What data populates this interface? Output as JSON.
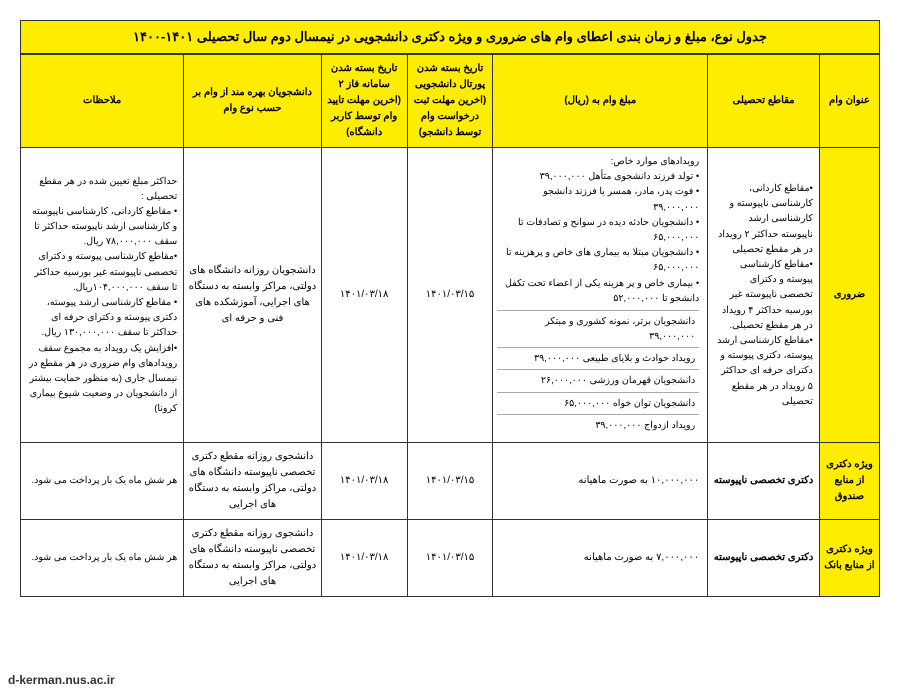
{
  "title": "جدول نوع، مبلغ و زمان بندی اعطای وام های ضروری و ویژه دکتری دانشجویی در نیمسال دوم سال تحصیلی ۱۴۰۱-۱۴۰۰",
  "headers": {
    "loan_title": "عنوان وام",
    "level": "مقاطع تحصیلی",
    "amount": "مبلغ وام به (ریال)",
    "date_portal": "تاریخ بسته شدن پورتال دانشجویی (اخرین مهلت ثبت درخواست وام توسط دانشجو)",
    "date_phase2": "تاریخ بسته شدن سامانه فاز ۲ (اخرین مهلت تایید وام توسط کاربر دانشگاه)",
    "beneficiaries": "دانشجویان بهره مند از وام بر حسب نوع وام",
    "notes": "ملاحظات"
  },
  "rows": {
    "essential": {
      "title": "ضروری",
      "level": "•مقاطع کاردانی، کارشناسی ناپیوسته و کارشناسی ارشد ناپیوسته حداکثر ۲ رویداد در هر مقطع تحصیلی\n•مقاطع کارشناسی پیوسته و دکترای تخصصی ناپیوسته غیر بورسیه حداکثر ۴ رویداد در هر مقطع تحصیلی.\n•مقاطع کارشناسی ارشد پیوسته، دکتری پیوسته و دکترای حرفه ای حداکثر ۵ رویداد در هر مقطع تحصیلی",
      "events_header": "رویدادهای موارد خاص:",
      "events": [
        "• تولد فرزند دانشجوی متأهل ۳۹,۰۰۰,۰۰۰",
        "• فوت پدر، مادر، همسر یا فرزند دانشجو ۳۹,۰۰۰,۰۰۰",
        "• دانشجویان حادثه دیده در سوانح و تصادفات تا ۶۵,۰۰۰,۰۰۰",
        "• دانشجویان مبتلا به بیماری های خاص و پرهزینه تا ۶۵,۰۰۰,۰۰۰",
        "• بیماری خاص و پر هزینه یکی از اعضاء تحت تکفل دانشجو تا ۵۲,۰۰۰,۰۰۰"
      ],
      "sub_items": [
        "دانشجویان برتر، نمونه کشوری و مبتکر ۳۹,۰۰۰,۰۰۰",
        "رویداد حوادث و بلایای طبیعی ۳۹,۰۰۰,۰۰۰",
        "دانشجویان قهرمان ورزشی ۲۶,۰۰۰,۰۰۰",
        "دانشجویان توان خواه ۶۵,۰۰۰,۰۰۰",
        "رویداد ازدواج ۳۹,۰۰۰,۰۰۰"
      ],
      "date_portal": "۱۴۰۱/۰۳/۱۵",
      "date_phase2": "۱۴۰۱/۰۳/۱۸",
      "beneficiaries": "دانشجویان روزانه دانشگاه های دولتی، مراکز وابسته به دستگاه های اجرایی، آموزشکده های فنی و حرفه ای",
      "notes": "حداکثر مبلغ تعیین شده در هر مقطع تحصیلی :\n• مقاطع کاردانی، کارشناسی ناپیوسته و کارشناسی ارشد ناپیوسته حداکثر تا سقف ۷۸,۰۰۰,۰۰۰ ریال.\n•مقاطع کارشناسی پیوسته و دکترای تخصصی ناپیوسته غیر بورسیه حداکثر تا سقف ۱۰۴,۰۰۰,۰۰۰ریال.\n• مقاطع کارشناسی ارشد پیوسته، دکتری پیوسته و دکترای حرفه ای حداکثر تا سقف ۱۳۰,۰۰۰,۰۰۰ ریال.\n•افزایش یک رویداد به مجموع سقف رویدادهای وام ضروری در هر مقطع در نیمسال جاری (به منظور حمایت بیشتر از دانشجویان در وضعیت شیوع بیماری کرونا)"
    },
    "phd_fund": {
      "title": "ویژه دکتری از منابع صندوق",
      "level": "دکتری تخصصی ناپیوسته",
      "amount": "۱۰,۰۰۰,۰۰۰ به صورت ماهیانه",
      "date_portal": "۱۴۰۱/۰۳/۱۵",
      "date_phase2": "۱۴۰۱/۰۳/۱۸",
      "beneficiaries": "دانشجوی روزانه مقطع دکتری تخصصی ناپیوسته دانشگاه های دولتی، مراکز وابسته به دستگاه های اجرایی",
      "notes": "هر شش ماه یک بار پرداخت می شود."
    },
    "phd_bank": {
      "title": "ویژه دکتری از منابع بانک",
      "level": "دکتری تخصصی ناپیوسته",
      "amount": "۷,۰۰۰,۰۰۰ به صورت ماهیانه",
      "date_portal": "۱۴۰۱/۰۳/۱۵",
      "date_phase2": "۱۴۰۱/۰۳/۱۸",
      "beneficiaries": "دانشجوی روزانه مقطع دکتری تخصصی ناپیوسته دانشگاه های دولتی، مراکز وابسته به دستگاه های اجرایی",
      "notes": "هر شش ماه یک بار پرداخت می شود."
    }
  },
  "footer": "d-kerman.nus.ac.ir",
  "colors": {
    "highlight": "#feed01",
    "border": "#333333",
    "background": "#ffffff"
  }
}
